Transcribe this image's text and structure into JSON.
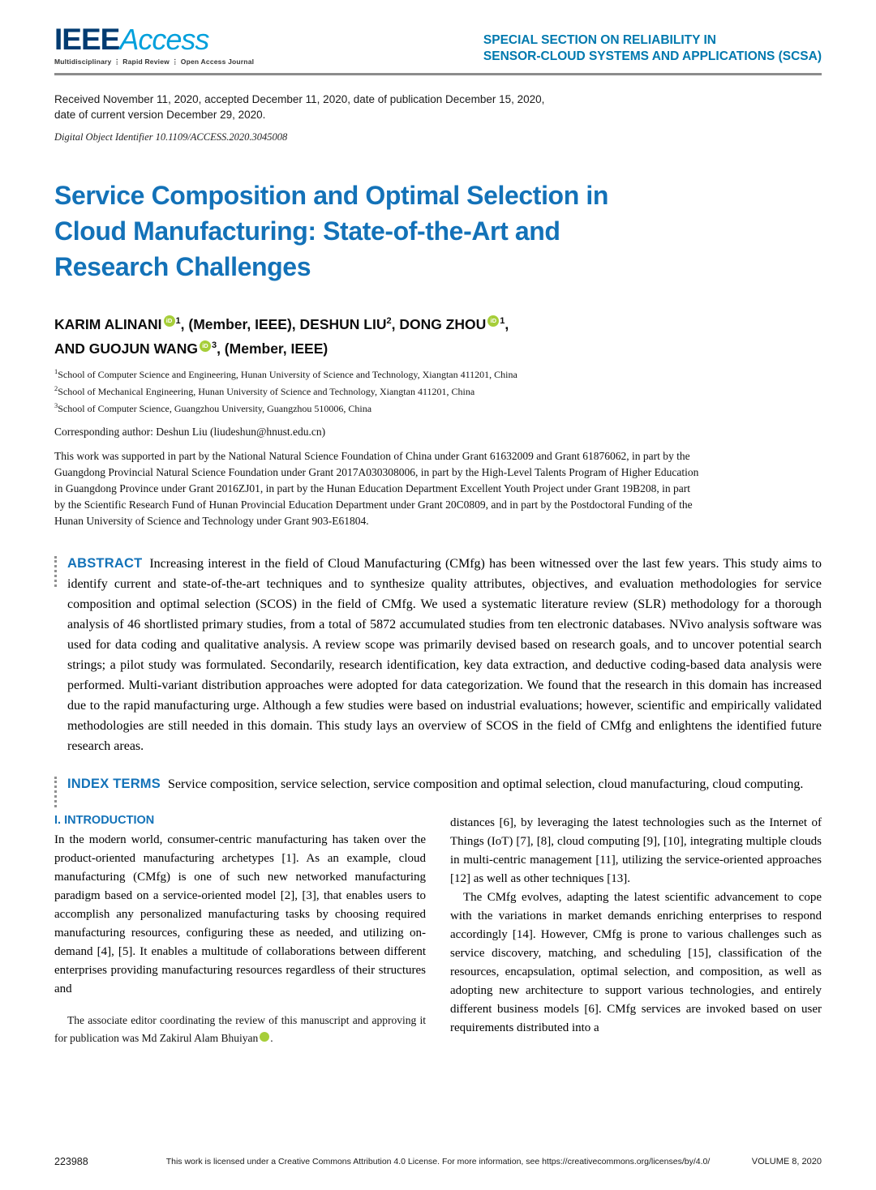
{
  "header": {
    "logo_ieee": "IEEE",
    "logo_access": "Access",
    "tagline": "Multidisciplinary ⋮ Rapid Review ⋮ Open Access Journal",
    "section_line1": "SPECIAL SECTION ON RELIABILITY IN",
    "section_line2": "SENSOR-CLOUD SYSTEMS AND APPLICATIONS (SCSA)"
  },
  "meta": {
    "received_line1": "Received November 11, 2020, accepted December 11, 2020, date of publication December 15, 2020,",
    "received_line2": "date of current version December 29, 2020.",
    "doi": "Digital Object Identifier 10.1109/ACCESS.2020.3045008"
  },
  "title": {
    "line1": "Service Composition and Optimal Selection in",
    "line2": "Cloud Manufacturing: State-of-the-Art and",
    "line3": "Research Challenges"
  },
  "authors": {
    "orcid_label": "iD",
    "name1": "KARIM ALINANI",
    "sup1": "1",
    "mid1": ", (Member, IEEE), DESHUN LIU",
    "sup2": "2",
    "mid2": ", DONG ZHOU",
    "sup3": "1",
    "mid3": ",",
    "line2_pre": "AND GUOJUN WANG",
    "sup4": "3",
    "line2_post": ", (Member, IEEE)"
  },
  "affiliations": [
    {
      "sup": "1",
      "text": "School of Computer Science and Engineering, Hunan University of Science and Technology, Xiangtan 411201, China"
    },
    {
      "sup": "2",
      "text": "School of Mechanical Engineering, Hunan University of Science and Technology, Xiangtan 411201, China"
    },
    {
      "sup": "3",
      "text": "School of Computer Science, Guangzhou University, Guangzhou 510006, China"
    }
  ],
  "corresponding": "Corresponding author: Deshun Liu (liudeshun@hnust.edu.cn)",
  "funding": "This work was supported in part by the National Natural Science Foundation of China under Grant 61632009 and Grant 61876062, in part by the Guangdong Provincial Natural Science Foundation under Grant 2017A030308006, in part by the High-Level Talents Program of Higher Education in Guangdong Province under Grant 2016ZJ01, in part by the Hunan Education Department Excellent Youth Project under Grant 19B208, in part by the Scientific Research Fund of Hunan Provincial Education Department under Grant 20C0809, and in part by the Postdoctoral Funding of the Hunan University of Science and Technology under Grant 903-E61804.",
  "abstract": {
    "label": "ABSTRACT",
    "text": "Increasing interest in the field of Cloud Manufacturing (CMfg) has been witnessed over the last few years. This study aims to identify current and state-of-the-art techniques and to synthesize quality attributes, objectives, and evaluation methodologies for service composition and optimal selection (SCOS) in the field of CMfg. We used a systematic literature review (SLR) methodology for a thorough analysis of 46 shortlisted primary studies, from a total of 5872 accumulated studies from ten electronic databases. NVivo analysis software was used for data coding and qualitative analysis. A review scope was primarily devised based on research goals, and to uncover potential search strings; a pilot study was formulated. Secondarily, research identification, key data extraction, and deductive coding-based data analysis were performed. Multi-variant distribution approaches were adopted for data categorization. We found that the research in this domain has increased due to the rapid manufacturing urge. Although a few studies were based on industrial evaluations; however, scientific and empirically validated methodologies are still needed in this domain. This study lays an overview of SCOS in the field of CMfg and enlightens the identified future research areas."
  },
  "index_terms": {
    "label": "INDEX TERMS",
    "text": "Service composition, service selection, service composition and optimal selection, cloud manufacturing, cloud computing."
  },
  "intro": {
    "heading": "I. INTRODUCTION",
    "left_p1": "In the modern world, consumer-centric manufacturing has taken over the product-oriented manufacturing archetypes [1]. As an example, cloud manufacturing (CMfg) is one of such new networked manufacturing paradigm based on a service-oriented model [2], [3], that enables users to accomplish any personalized manufacturing tasks by choosing required manufacturing resources, configuring these as needed, and utilizing on-demand [4], [5]. It enables a multitude of collaborations between different enterprises providing manufacturing resources regardless of their structures and",
    "editor_note_text": "The associate editor coordinating the review of this manuscript and approving it for publication was Md Zakirul Alam Bhuiyan",
    "editor_note_end": ".",
    "right_p1": "distances [6], by leveraging the latest technologies such as the Internet of Things (IoT) [7], [8], cloud computing [9], [10], integrating multiple clouds in multi-centric management [11], utilizing the service-oriented approaches [12] as well as other techniques [13].",
    "right_p2": "The CMfg evolves, adapting the latest scientific advancement to cope with the variations in market demands enriching enterprises to respond accordingly [14]. However, CMfg is prone to various challenges such as service discovery, matching, and scheduling [15], classification of the resources, encapsulation, optimal selection, and composition, as well as adopting new architecture to support various technologies, and entirely different business models [6]. CMfg services are invoked based on user requirements distributed into a"
  },
  "footer": {
    "page_number": "223988",
    "license": "This work is licensed under a Creative Commons Attribution 4.0 License. For more information, see https://creativecommons.org/licenses/by/4.0/",
    "volume": "VOLUME 8, 2020"
  },
  "colors": {
    "title_blue": "#1372b8",
    "ieee_navy": "#003b71",
    "access_blue": "#00a0dc",
    "section_blue": "#0079ae",
    "orcid_green": "#a6ce39"
  }
}
